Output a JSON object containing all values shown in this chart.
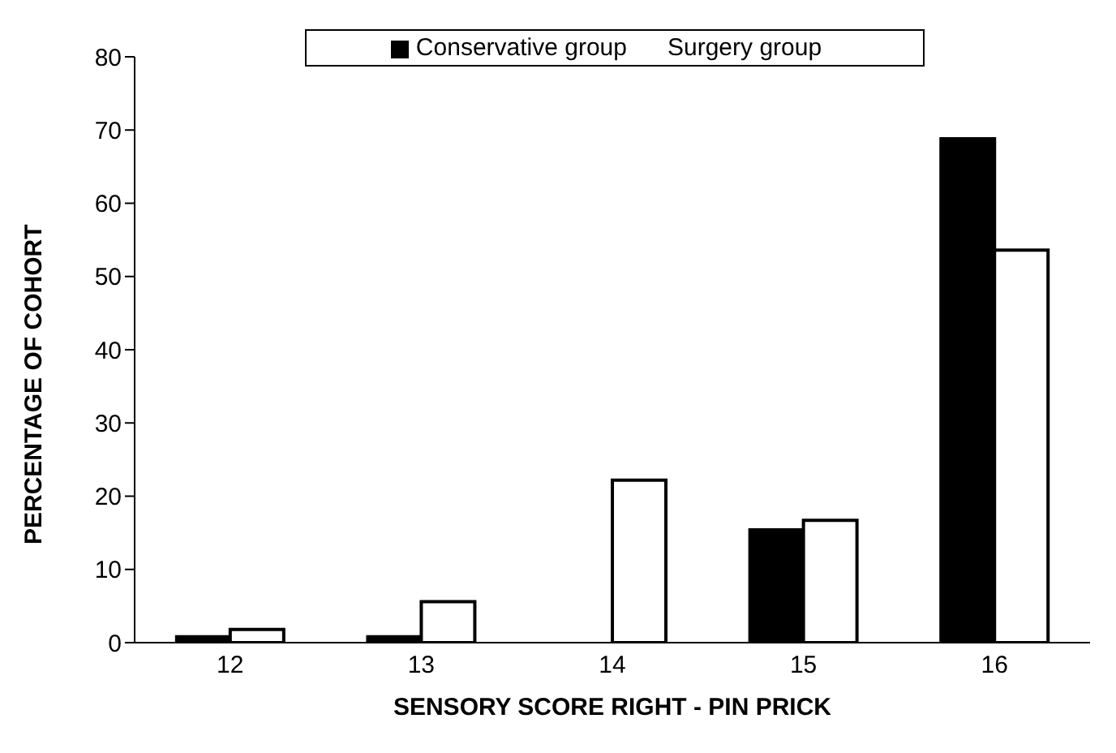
{
  "chart_data": {
    "type": "bar",
    "xlabel": "SENSORY SCORE RIGHT - PIN PRICK",
    "ylabel": "PERCENTAGE  OF  COHORT",
    "categories": [
      "12",
      "13",
      "14",
      "15",
      "16"
    ],
    "series": [
      {
        "name": "Conservative group",
        "color": "#000000",
        "values": [
          0.8,
          0.8,
          0,
          15.4,
          68.8
        ]
      },
      {
        "name": "Surgery group",
        "color": "#ffffff",
        "values": [
          1.8,
          5.6,
          22.2,
          16.7,
          53.6
        ]
      }
    ],
    "ylim": [
      0,
      80
    ],
    "yticks": [
      0,
      10,
      20,
      30,
      40,
      50,
      60,
      70,
      80
    ],
    "grid": false,
    "legend": "top"
  }
}
